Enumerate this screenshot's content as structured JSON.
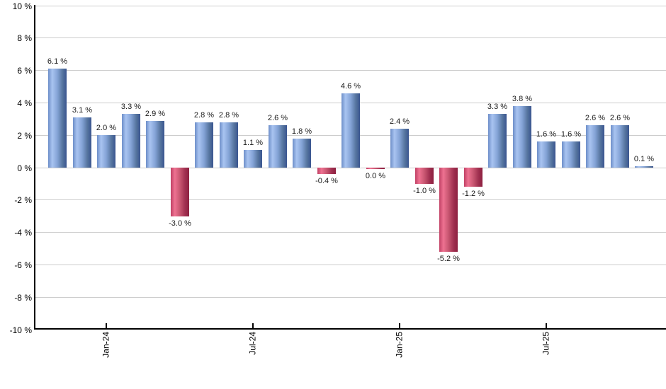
{
  "chart_data": {
    "type": "bar",
    "title": "",
    "xlabel": "",
    "ylabel": "",
    "values": [
      6.1,
      3.1,
      2.0,
      3.3,
      2.9,
      -3.0,
      2.8,
      2.8,
      1.1,
      2.6,
      1.8,
      -0.4,
      4.6,
      0.0,
      2.4,
      -1.0,
      -5.2,
      -1.2,
      3.3,
      3.8,
      1.6,
      1.6,
      2.6,
      2.6,
      0.1
    ],
    "bar_labels": [
      "6.1 %",
      "3.1 %",
      "2.0 %",
      "3.3 %",
      "2.9 %",
      "-3.0 %",
      "2.8 %",
      "2.8 %",
      "1.1 %",
      "2.6 %",
      "1.8 %",
      "-0.4 %",
      "4.6 %",
      "0.0 %",
      "2.4 %",
      "-1.0 %",
      "-5.2 %",
      "-1.2 %",
      "3.3 %",
      "3.8 %",
      "1.6 %",
      "1.6 %",
      "2.6 %",
      "2.6 %",
      "0.1 %"
    ],
    "ylim": [
      -10,
      10
    ],
    "y_tick_step": 2,
    "y_tick_labels": [
      "10 %",
      "8 %",
      "6 %",
      "4 %",
      "2 %",
      "0 %",
      "-2 %",
      "-4 %",
      "-6 %",
      "-8 %",
      "-10 %"
    ],
    "x_ticks": [
      {
        "label": "Jan-24",
        "bar_index": 2
      },
      {
        "label": "Jul-24",
        "bar_index": 8
      },
      {
        "label": "Jan-25",
        "bar_index": 14
      },
      {
        "label": "Jul-25",
        "bar_index": 20
      }
    ],
    "grid": true,
    "legend": "none",
    "colors": {
      "positive_gradient": [
        "#6d8ec8",
        "#a9c4f1",
        "#84a3d6",
        "#56759f",
        "#3a5590"
      ],
      "negative_gradient": [
        "#c04064",
        "#ee7291",
        "#c85671",
        "#a03050",
        "#8d2040"
      ],
      "grid": "#cccccc",
      "axis": "#000000",
      "label_text": "#1a1a1a"
    }
  }
}
